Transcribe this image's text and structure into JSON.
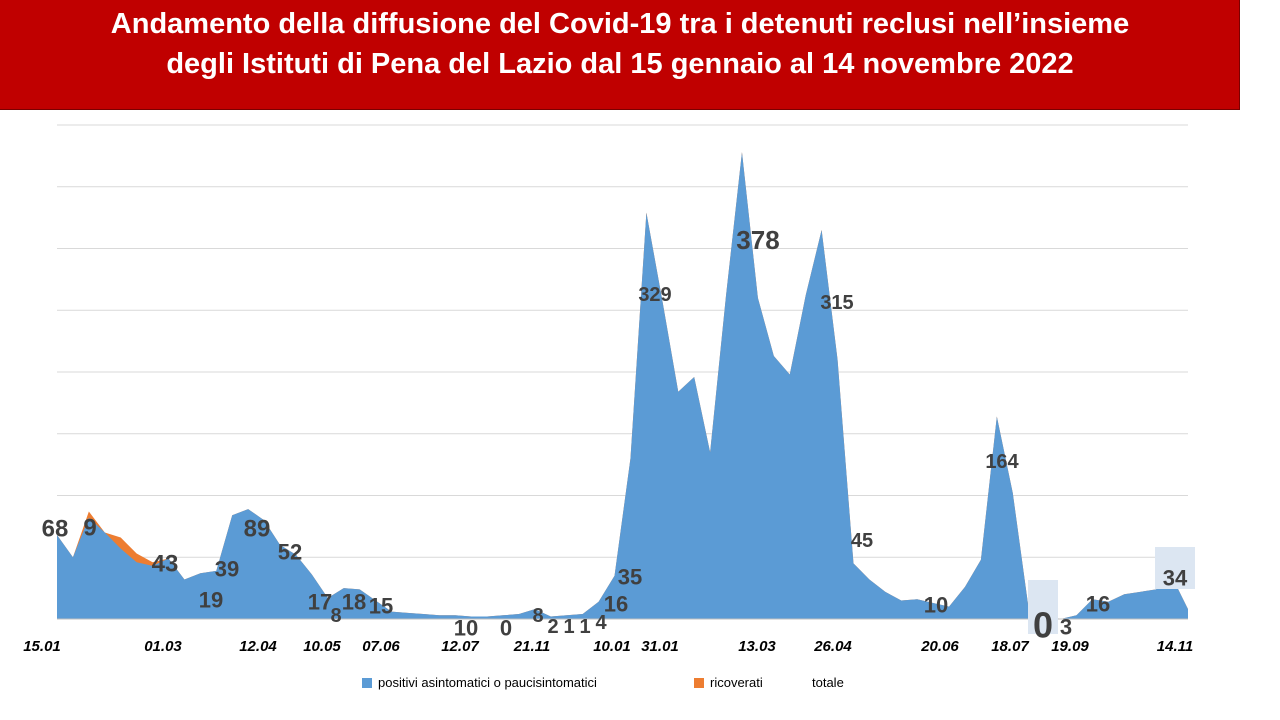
{
  "title": {
    "line1": "Andamento della diffusione del Covid-19 tra i detenuti reclusi nell’insieme",
    "line2": "degli Istituti di Pena del Lazio dal 15 gennaio al 14 novembre 2022"
  },
  "colors": {
    "positivi": "#5b9bd5",
    "ricoverati": "#ed7d31",
    "title_bg": "#c00000",
    "highlight": "#dce6f2"
  },
  "chart_data": {
    "type": "area",
    "stacked": true,
    "ylim": [
      0,
      400
    ],
    "grid": true,
    "legend_position": "bottom",
    "x_tick_labels": [
      "15.01",
      "01.03",
      "12.04",
      "10.05",
      "07.06",
      "12.07",
      "21.11",
      "10.01",
      "31.01",
      "13.03",
      "26.04",
      "20.06",
      "18.07",
      "19.09",
      "14.11"
    ],
    "series": [
      {
        "name": "positivi asintomatici o paucisintomatici",
        "values": [
          68,
          50,
          82,
          70,
          57,
          46,
          43,
          49,
          32,
          37,
          39,
          84,
          89,
          80,
          60,
          52,
          36,
          17,
          25,
          24,
          15,
          6,
          5,
          4,
          3,
          3,
          2,
          2,
          3,
          4,
          8,
          2,
          3,
          4,
          14,
          35,
          130,
          329,
          258,
          184,
          196,
          135,
          262,
          378,
          260,
          213,
          198,
          262,
          315,
          210,
          45,
          32,
          22,
          15,
          16,
          13,
          10,
          26,
          48,
          164,
          102,
          8,
          3,
          0,
          3,
          16,
          14,
          20,
          22,
          24,
          34,
          8
        ]
      },
      {
        "name": "ricoverati",
        "values": [
          0,
          0,
          5,
          0,
          9,
          7,
          3,
          0,
          0,
          0,
          0,
          0,
          0,
          0,
          0,
          0,
          0,
          0,
          0,
          0,
          0,
          0,
          0,
          0,
          0,
          0,
          0,
          0,
          0,
          0,
          0,
          0,
          0,
          0,
          0,
          0,
          0,
          0,
          0,
          0,
          0,
          0,
          0,
          0,
          0,
          0,
          0,
          0,
          0,
          0,
          0,
          0,
          0,
          0,
          0,
          0,
          0,
          0,
          0,
          0,
          0,
          0,
          0,
          0,
          0,
          0,
          0,
          0,
          0,
          0,
          0,
          0
        ]
      },
      {
        "name": "totale",
        "values": []
      }
    ],
    "data_labels": [
      "68",
      "9",
      "43",
      "19",
      "39",
      "89",
      "52",
      "17",
      "8",
      "18",
      "15",
      "10",
      "0",
      "8",
      "2",
      "1",
      "1",
      "4",
      "16",
      "35",
      "329",
      "378",
      "315",
      "45",
      "10",
      "164",
      "0",
      "3",
      "16",
      "34"
    ]
  }
}
